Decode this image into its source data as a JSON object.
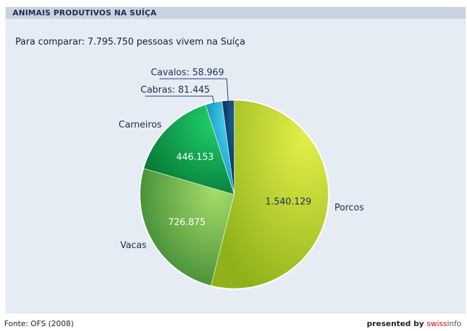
{
  "header": {
    "title": "ANIMAIS PRODUTIVOS NA SUÍÇA"
  },
  "subtitle": "Para comparar: 7.795.750 pessoas vivem na Suíça",
  "footer": {
    "source": "Fonte: OFS (2008)",
    "credit_prefix": "presented by ",
    "brand_a": "swiss",
    "brand_b": "info"
  },
  "chart_data": {
    "type": "pie",
    "start": "top, clockwise",
    "slices": [
      {
        "label": "Porcos",
        "value": 1540129,
        "value_text": "1.540.129",
        "color": "#a8c81c",
        "label_pos": "outside-right",
        "value_inside": true
      },
      {
        "label": "Vacas",
        "value": 726875,
        "value_text": "726.875",
        "color": "#7cc140",
        "label_pos": "outside-left",
        "value_inside": true
      },
      {
        "label": "Carneiros",
        "value": 446153,
        "value_text": "446.153",
        "color": "#0fae4e",
        "label_pos": "outside-left",
        "value_inside": true
      },
      {
        "label": "Cabras",
        "value": 81445,
        "value_text": "Cabras: 81.445",
        "color": "#1cb8e0",
        "label_pos": "callout",
        "value_inside": false
      },
      {
        "label": "Cavalos",
        "value": 58969,
        "value_text": "Cavalos: 58.969",
        "color": "#0c4474",
        "label_pos": "callout",
        "value_inside": false
      }
    ]
  }
}
